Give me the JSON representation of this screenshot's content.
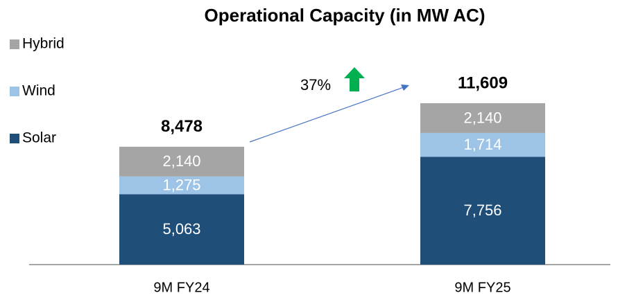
{
  "chart_data": {
    "type": "bar",
    "stacked": true,
    "title": "Operational Capacity (in MW AC)",
    "categories": [
      "9M FY24",
      "9M FY25"
    ],
    "series": [
      {
        "name": "Solar",
        "color": "#1f4e79",
        "values": [
          5063,
          7756
        ],
        "value_labels": [
          "5,063",
          "7,756"
        ]
      },
      {
        "name": "Wind",
        "color": "#9dc3e6",
        "values": [
          1275,
          1714
        ],
        "value_labels": [
          "1,275",
          "1,714"
        ]
      },
      {
        "name": "Hybrid",
        "color": "#a5a5a5",
        "values": [
          2140,
          2140
        ],
        "value_labels": [
          "2,140",
          "2,140"
        ]
      }
    ],
    "totals": [
      8478,
      11609
    ],
    "total_labels": [
      "8,478",
      "11,609"
    ],
    "annotation": "37%"
  }
}
